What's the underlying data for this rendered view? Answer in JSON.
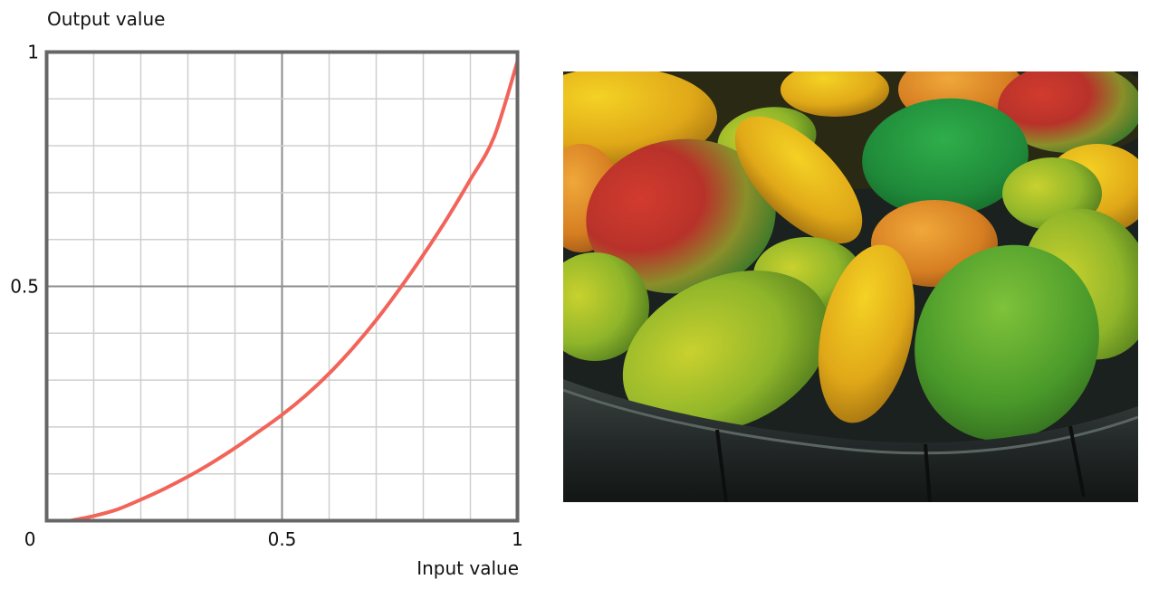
{
  "chart_data": {
    "type": "line",
    "xlabel": "Input value",
    "ylabel": "Output value",
    "xlim": [
      0,
      1
    ],
    "ylim": [
      0,
      1
    ],
    "x_ticks": [
      {
        "value": 0,
        "label": "0"
      },
      {
        "value": 0.5,
        "label": "0.5"
      },
      {
        "value": 1,
        "label": "1"
      }
    ],
    "y_ticks": [
      {
        "value": 0.5,
        "label": "0.5"
      },
      {
        "value": 1,
        "label": "1"
      }
    ],
    "grid": true,
    "grid_step": 0.1,
    "series": [
      {
        "color": "#f2645a",
        "x": [
          0.05,
          0.1,
          0.15,
          0.2,
          0.25,
          0.3,
          0.35,
          0.4,
          0.45,
          0.5,
          0.55,
          0.6,
          0.65,
          0.7,
          0.75,
          0.8,
          0.85,
          0.9,
          0.95,
          1.0
        ],
        "y": [
          0.0,
          0.01,
          0.024,
          0.045,
          0.068,
          0.094,
          0.123,
          0.155,
          0.19,
          0.226,
          0.267,
          0.314,
          0.368,
          0.428,
          0.495,
          0.567,
          0.644,
          0.728,
          0.818,
          0.98
        ]
      }
    ]
  },
  "photo": {
    "subject": "basket of mangoes"
  }
}
